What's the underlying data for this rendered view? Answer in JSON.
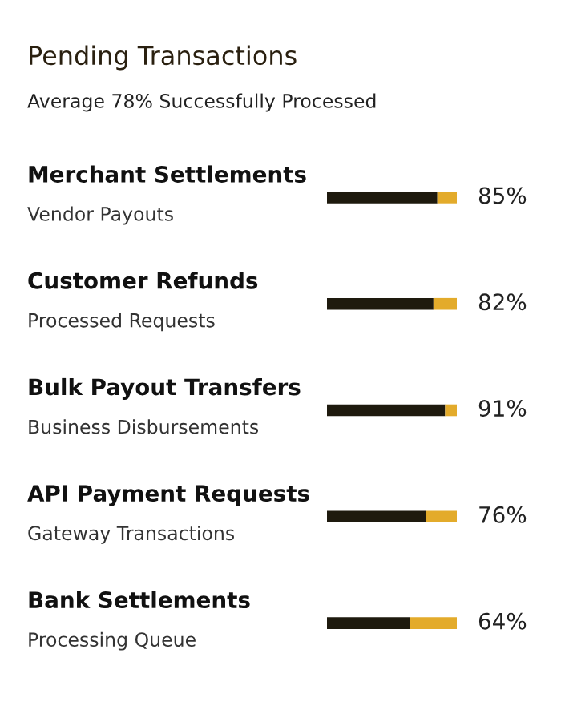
{
  "chart_data": {
    "type": "bar",
    "orientation": "horizontal",
    "stacked": true,
    "title": "Pending Transactions",
    "subtitle": "Average 78% Successfully Processed",
    "categories": [
      "Merchant Settlements\nVendor Payouts",
      "Customer Refunds\nProcessed Requests",
      "Bulk Payout Transfers\nBusiness Disbursements",
      "API Payment Requests\nGateway Transactions",
      "Bank Settlements\nProcessing Queue"
    ],
    "series": [
      {
        "color": "#1e1a0e",
        "values": [
          85,
          82,
          91,
          76,
          64
        ],
        "value_labels": [
          "85%",
          "82%",
          "91%",
          "76%",
          "64%"
        ]
      },
      {
        "color": "#e3ab2b",
        "values": [
          15,
          18,
          9,
          24,
          36
        ]
      }
    ],
    "xlim": [
      0,
      100
    ],
    "tick_labels": false
  }
}
